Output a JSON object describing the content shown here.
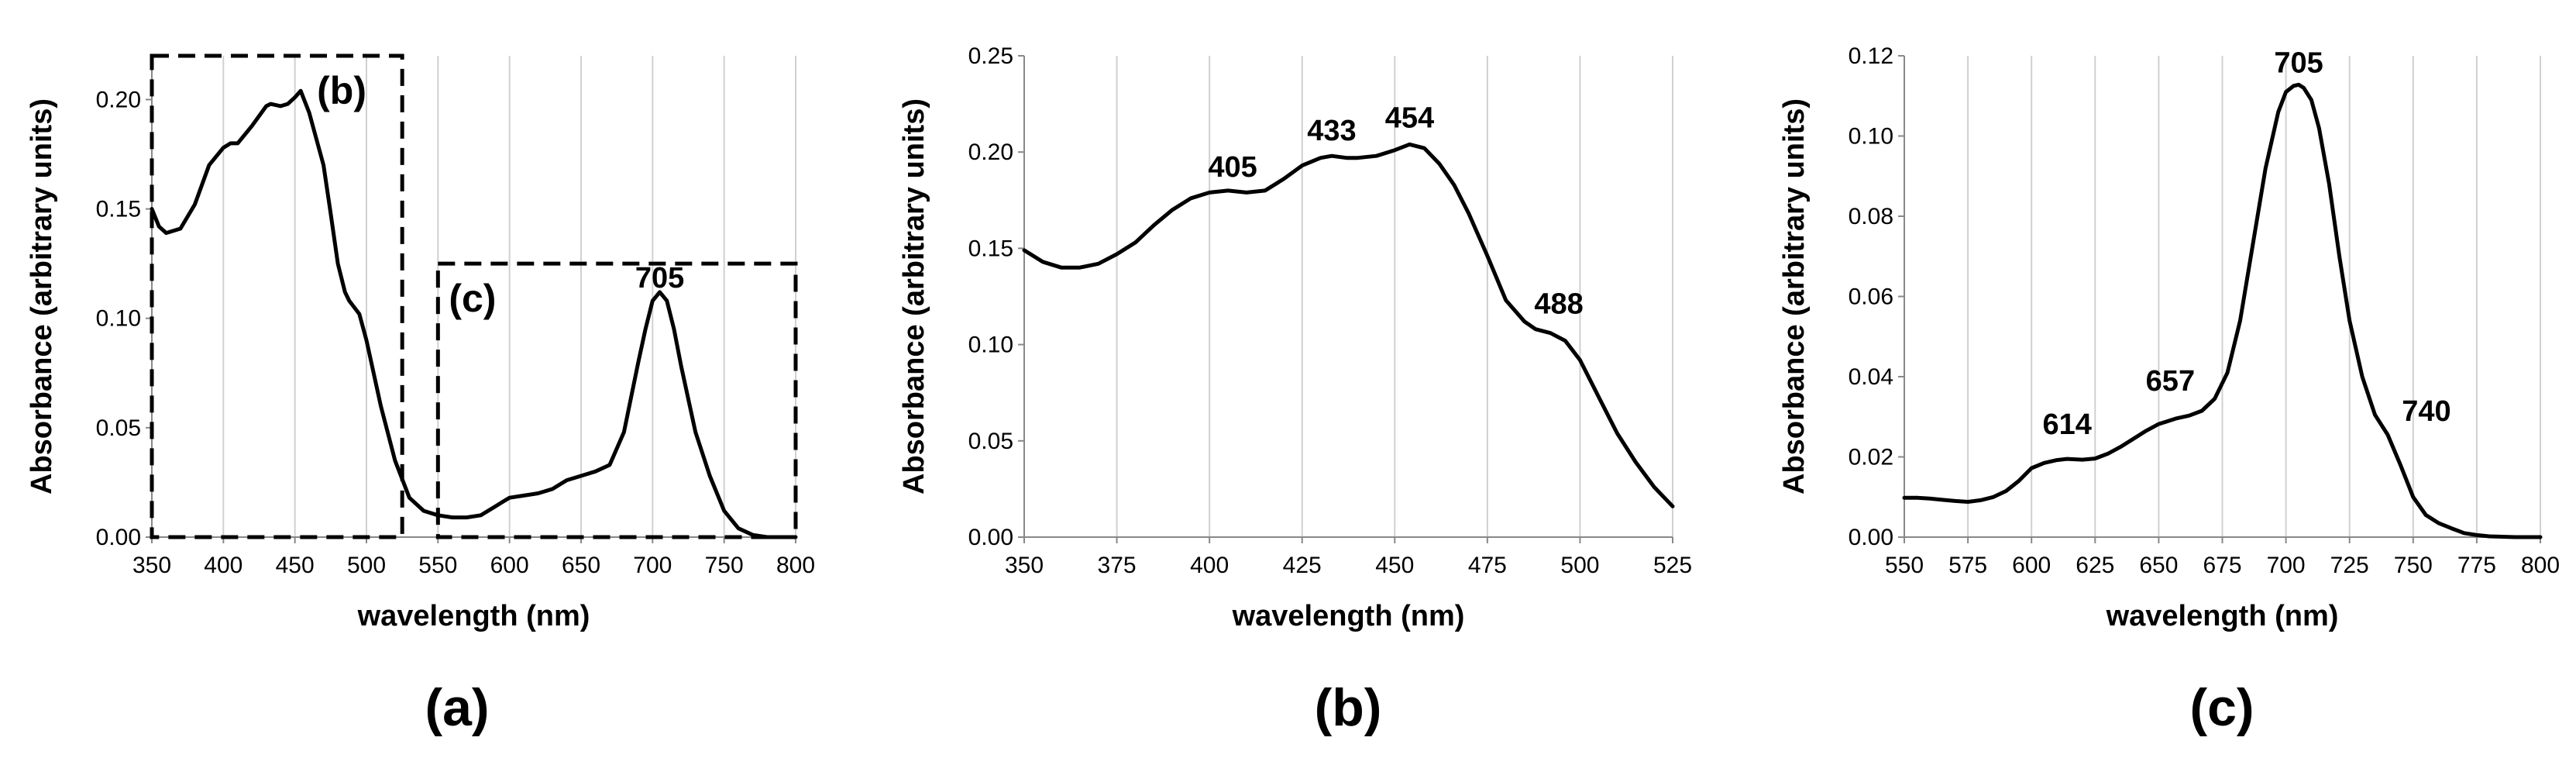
{
  "chart_data": [
    {
      "type": "line",
      "panel_label": "(a)",
      "xlabel": "wavelength (nm)",
      "ylabel": "Absorbance (arbitrary units)",
      "xlim": [
        350,
        800
      ],
      "ylim": [
        0,
        0.22
      ],
      "x_ticks": [
        350,
        400,
        450,
        500,
        550,
        600,
        650,
        700,
        750,
        800
      ],
      "y_ticks": [
        0.0,
        0.05,
        0.1,
        0.15,
        0.2
      ],
      "y_tick_labels": [
        "0.00",
        "0.05",
        "0.10",
        "0.15",
        "0.20"
      ],
      "grid": "vertical",
      "series": [
        {
          "name": "absorbance",
          "x": [
            350,
            355,
            360,
            370,
            380,
            390,
            400,
            405,
            410,
            420,
            430,
            433,
            440,
            445,
            450,
            454,
            460,
            470,
            475,
            480,
            485,
            488,
            495,
            500,
            510,
            520,
            530,
            540,
            550,
            560,
            570,
            580,
            590,
            595,
            600,
            610,
            620,
            630,
            640,
            650,
            660,
            670,
            680,
            690,
            695,
            700,
            705,
            710,
            715,
            720,
            730,
            740,
            750,
            760,
            770,
            780,
            790,
            800
          ],
          "values": [
            0.15,
            0.142,
            0.139,
            0.141,
            0.152,
            0.17,
            0.178,
            0.18,
            0.18,
            0.188,
            0.197,
            0.198,
            0.197,
            0.198,
            0.201,
            0.204,
            0.194,
            0.17,
            0.148,
            0.125,
            0.112,
            0.108,
            0.102,
            0.09,
            0.06,
            0.035,
            0.018,
            0.012,
            0.01,
            0.009,
            0.009,
            0.01,
            0.014,
            0.016,
            0.018,
            0.019,
            0.02,
            0.022,
            0.026,
            0.028,
            0.03,
            0.033,
            0.048,
            0.08,
            0.095,
            0.108,
            0.112,
            0.108,
            0.095,
            0.078,
            0.048,
            0.028,
            0.012,
            0.004,
            0.001,
            0.0,
            0.0,
            0.0
          ]
        }
      ],
      "annotations": [
        {
          "text": "705",
          "x": 705,
          "y": 0.112
        }
      ],
      "inset_boxes": [
        {
          "label": "(b)",
          "x_range": [
            350,
            525
          ],
          "y_range": [
            0,
            0.22
          ]
        },
        {
          "label": "(c)",
          "x_range": [
            550,
            800
          ],
          "y_range": [
            0,
            0.125
          ]
        }
      ]
    },
    {
      "type": "line",
      "panel_label": "(b)",
      "xlabel": "wavelength (nm)",
      "ylabel": "Absorbance (arbitrary units)",
      "xlim": [
        350,
        525
      ],
      "ylim": [
        0,
        0.25
      ],
      "x_ticks": [
        350,
        375,
        400,
        425,
        450,
        475,
        500,
        525
      ],
      "y_ticks": [
        0.0,
        0.05,
        0.1,
        0.15,
        0.2,
        0.25
      ],
      "y_tick_labels": [
        "0.00",
        "0.05",
        "0.10",
        "0.15",
        "0.20",
        "0.25"
      ],
      "grid": "vertical",
      "series": [
        {
          "name": "absorbance",
          "x": [
            350,
            355,
            360,
            365,
            370,
            375,
            380,
            385,
            390,
            395,
            400,
            405,
            410,
            415,
            420,
            425,
            430,
            433,
            437,
            440,
            445,
            450,
            454,
            458,
            462,
            466,
            470,
            475,
            480,
            485,
            488,
            492,
            496,
            500,
            505,
            510,
            515,
            520,
            525
          ],
          "values": [
            0.149,
            0.143,
            0.14,
            0.14,
            0.142,
            0.147,
            0.153,
            0.162,
            0.17,
            0.176,
            0.179,
            0.18,
            0.179,
            0.18,
            0.186,
            0.193,
            0.197,
            0.198,
            0.197,
            0.197,
            0.198,
            0.201,
            0.204,
            0.202,
            0.194,
            0.183,
            0.168,
            0.146,
            0.123,
            0.112,
            0.108,
            0.106,
            0.102,
            0.092,
            0.073,
            0.054,
            0.039,
            0.026,
            0.016
          ]
        }
      ],
      "annotations": [
        {
          "text": "405",
          "x": 405,
          "y": 0.18
        },
        {
          "text": "433",
          "x": 433,
          "y": 0.198
        },
        {
          "text": "454",
          "x": 454,
          "y": 0.204
        },
        {
          "text": "488",
          "x": 488,
          "y": 0.108
        }
      ]
    },
    {
      "type": "line",
      "panel_label": "(c)",
      "xlabel": "wavelength (nm)",
      "ylabel": "Absorbance (arbitrary units)",
      "xlim": [
        550,
        800
      ],
      "ylim": [
        0,
        0.12
      ],
      "x_ticks": [
        550,
        575,
        600,
        625,
        650,
        675,
        700,
        725,
        750,
        775,
        800
      ],
      "y_ticks": [
        0.0,
        0.02,
        0.04,
        0.06,
        0.08,
        0.1,
        0.12
      ],
      "y_tick_labels": [
        "0.00",
        "0.02",
        "0.04",
        "0.06",
        "0.08",
        "0.10",
        "0.12"
      ],
      "grid": "vertical",
      "series": [
        {
          "name": "absorbance",
          "x": [
            550,
            555,
            560,
            565,
            570,
            575,
            580,
            585,
            590,
            595,
            600,
            605,
            610,
            614,
            620,
            625,
            630,
            635,
            640,
            645,
            650,
            655,
            657,
            662,
            667,
            672,
            677,
            682,
            687,
            692,
            697,
            700,
            703,
            705,
            707,
            710,
            713,
            717,
            721,
            725,
            730,
            735,
            740,
            745,
            750,
            755,
            760,
            765,
            770,
            775,
            780,
            785,
            790,
            800
          ],
          "values": [
            0.0098,
            0.0098,
            0.0096,
            0.0093,
            0.009,
            0.0088,
            0.0092,
            0.01,
            0.0115,
            0.014,
            0.0172,
            0.0185,
            0.0192,
            0.0195,
            0.0193,
            0.0196,
            0.0208,
            0.0225,
            0.0245,
            0.0265,
            0.0282,
            0.0292,
            0.0296,
            0.0303,
            0.0315,
            0.0345,
            0.041,
            0.054,
            0.073,
            0.092,
            0.106,
            0.111,
            0.1125,
            0.1128,
            0.112,
            0.109,
            0.102,
            0.088,
            0.07,
            0.054,
            0.04,
            0.0305,
            0.0255,
            0.018,
            0.01,
            0.0055,
            0.0035,
            0.0022,
            0.001,
            0.0005,
            0.0002,
            0.0001,
            0.0,
            0.0
          ]
        }
      ],
      "annotations": [
        {
          "text": "614",
          "x": 614,
          "y": 0.0195
        },
        {
          "text": "657",
          "x": 657,
          "y": 0.0296
        },
        {
          "text": "705",
          "x": 705,
          "y": 0.1128
        },
        {
          "text": "740",
          "x": 740,
          "y": 0.0255
        }
      ]
    }
  ]
}
